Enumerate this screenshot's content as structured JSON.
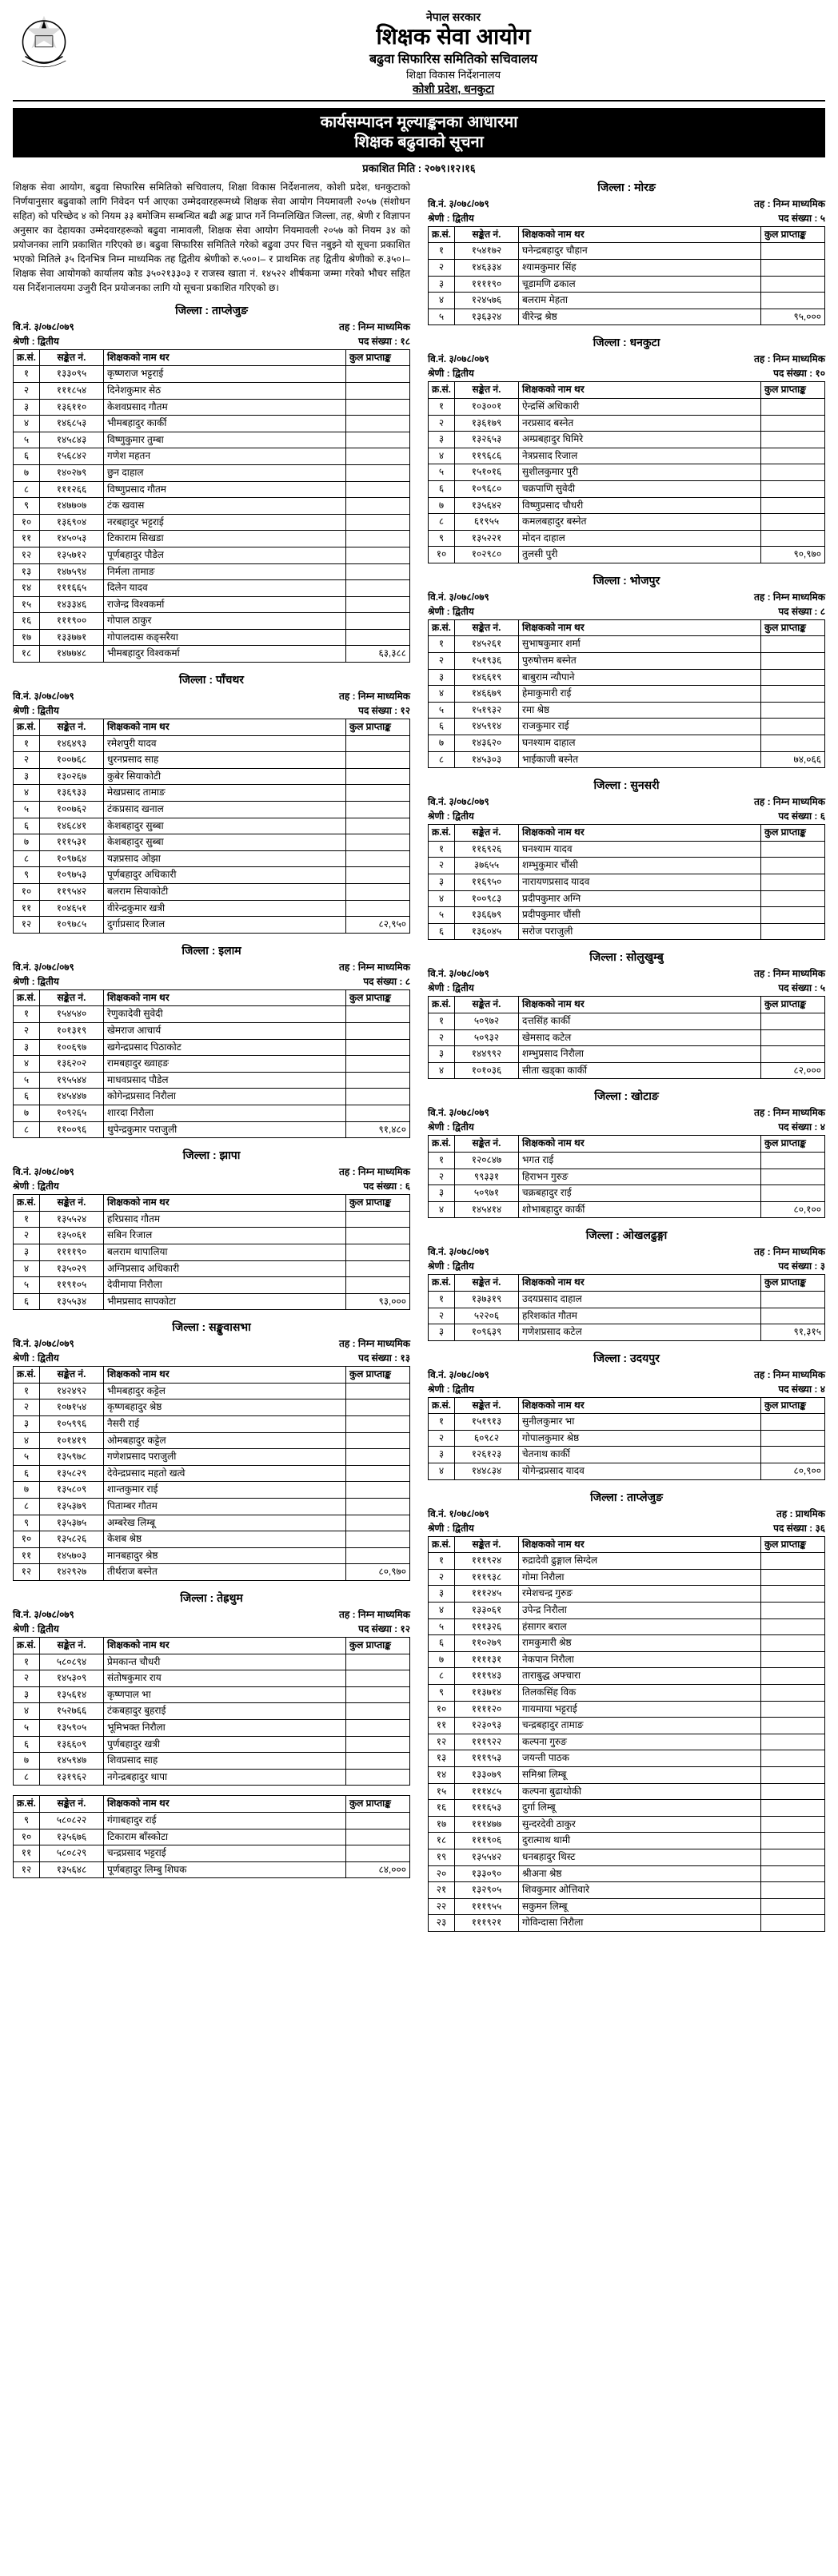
{
  "masthead": {
    "gov": "नेपाल सरकार",
    "org": "शिक्षक सेवा आयोग",
    "sub": "बढुवा सिफारिस समितिको सचिवालय",
    "dir": "शिक्षा विकास निर्देशनालय",
    "loc": "कोशी प्रदेश, धनकुटा"
  },
  "title": {
    "l1": "कार्यसम्पादन मूल्याङ्कनका आधारमा",
    "l2": "शिक्षक बढुवाको सूचना"
  },
  "pub_date": "प्रकाशित मिति : २०७९।१२।१६",
  "intro": "शिक्षक सेवा आयोग, बढुवा सिफारिस समितिको सचिवालय, शिक्षा विकास निर्देशनालय, कोशी प्रदेश, धनकुटाको निर्णयानुसार बढुवाको लागि निवेदन पर्न आएका उम्मेदवारहरूमध्ये शिक्षक सेवा आयोग नियमावली २०५७ (संशोधन सहित) को परिच्छेद ४ को नियम ३३ बमोजिम सम्बन्धित बढी अङ्क प्राप्त गर्ने निम्नलिखित जिल्ला, तह, श्रेणी र विज्ञापन अनुसार का देहायका उम्मेदवारहरूको बढुवा नामावली, शिक्षक सेवा आयोग नियमावली २०५७ को नियम ३४ को प्रयोजनका लागि प्रकाशित गरिएको छ। बढुवा सिफारिस समितिले गरेको बढुवा उपर चित्त नबुझ्ने यो सूचना प्रकाशित भएको मितिले ३५ दिनभित्र निम्न माध्यमिक तह द्वितीय श्रेणीको रु.५००।– र प्राथमिक तह द्वितीय श्रेणीको रु.३५०।– शिक्षक सेवा आयोगको कार्यालय कोड ३५०२१३३०३ र राजस्व खाता नं. १४५२२ शीर्षकमा जम्मा गरेको भौचर सहित यस निर्देशनालयमा उजुरी दिन प्रयोजनका लागि यो सूचना प्रकाशित गरिएको छ।",
  "headers": {
    "sn": "क्र.सं.",
    "code": "सङ्केत नं.",
    "name": "शिक्षकको नाम थर",
    "score": "कुल प्राप्ताङ्क"
  },
  "labels": {
    "adv": "वि.नं.",
    "grade": "श्रेणी :",
    "level": "तह :",
    "vac": "पद संख्या :"
  },
  "adv_no_1": "३/०७८/०७९",
  "adv_no_2": "१/०७८/०७९",
  "grade_2": "द्वितीय",
  "level_nimabi": "निम्न माध्यमिक",
  "level_pra": "प्राथमिक",
  "blocks": [
    {
      "district": "जिल्ला : ताप्लेजुङ",
      "vac": "१८",
      "rows": [
        [
          "१",
          "१३३०९५",
          "कृष्णराज भट्टराई",
          ""
        ],
        [
          "२",
          "१११८५४",
          "दिनेशकुमार सेठ",
          ""
        ],
        [
          "३",
          "१३६११०",
          "केशवप्रसाद गौतम",
          ""
        ],
        [
          "४",
          "१४६८५३",
          "भीमबहादुर कार्की",
          ""
        ],
        [
          "५",
          "१४५८४३",
          "विष्णुकुमार तुम्बा",
          ""
        ],
        [
          "६",
          "१५६८४२",
          "गणेश महतन",
          ""
        ],
        [
          "७",
          "१४०२७९",
          "छुन दाहाल",
          ""
        ],
        [
          "८",
          "१११२६६",
          "विष्णुप्रसाद गौतम",
          ""
        ],
        [
          "९",
          "१४७७०७",
          "टंक खवास",
          ""
        ],
        [
          "१०",
          "१३६९०४",
          "नरबहादुर भट्टराई",
          ""
        ],
        [
          "११",
          "१४५०५३",
          "टिकाराम सिखडा",
          ""
        ],
        [
          "१२",
          "१३५७१२",
          "पूर्णबहादुर पौडेल",
          ""
        ],
        [
          "१३",
          "१४७५९४",
          "निर्मला तामाङ",
          ""
        ],
        [
          "१४",
          "१११६६५",
          "दिलेन यादव",
          ""
        ],
        [
          "१५",
          "१४३३४६",
          "राजेन्द्र विश्वकर्मा",
          ""
        ],
        [
          "१६",
          "१११९००",
          "गोपाल ठाकुर",
          ""
        ],
        [
          "१७",
          "१३३७७१",
          "गोपालदास कङ्सरैया",
          ""
        ],
        [
          "१८",
          "१४७७४८",
          "भीमबहादुर विश्वकर्मा",
          "६३,३८८"
        ]
      ]
    },
    {
      "district": "जिल्ला : पाँचथर",
      "vac": "१२",
      "rows": [
        [
          "१",
          "१४६४९३",
          "रमेशपुरी यादव",
          ""
        ],
        [
          "२",
          "१००७६८",
          "धुरनप्रसाद साह",
          ""
        ],
        [
          "३",
          "१३०२६७",
          "कुबेर सियाकोटी",
          ""
        ],
        [
          "४",
          "१३६९३३",
          "मेखप्रसाद तामाङ",
          ""
        ],
        [
          "५",
          "१००७६२",
          "टंकप्रसाद खनाल",
          ""
        ],
        [
          "६",
          "१४६८४१",
          "केशबहादुर सुब्बा",
          ""
        ],
        [
          "७",
          "१११५३१",
          "केशबहादुर सुब्बा",
          ""
        ],
        [
          "८",
          "१०९७६४",
          "यज्ञप्रसाद ओझा",
          ""
        ],
        [
          "९",
          "१०९७५३",
          "पूर्णबहादुर अधिकारी",
          ""
        ],
        [
          "१०",
          "११९५४२",
          "बलराम सियाकोटी",
          ""
        ],
        [
          "११",
          "१०४६५१",
          "वीरेन्द्रकुमार खत्री",
          ""
        ],
        [
          "१२",
          "१०९७८५",
          "दुर्गाप्रसाद रिजाल",
          "८२,९५०"
        ]
      ]
    },
    {
      "district": "जिल्ला : इलाम",
      "vac": "८",
      "rows": [
        [
          "१",
          "१५४५४०",
          "रेणुकादेवी सुवेदी",
          ""
        ],
        [
          "२",
          "१०१३१९",
          "खेमराज आचार्य",
          ""
        ],
        [
          "३",
          "१००६९७",
          "खगेन्द्रप्रसाद पिठाकोट",
          ""
        ],
        [
          "४",
          "१३६२०२",
          "रामबहादुर ख्वाहङ",
          ""
        ],
        [
          "५",
          "१९५५४४",
          "माधवप्रसाद पौडेल",
          ""
        ],
        [
          "६",
          "१४५४४७",
          "कोगेन्द्रप्रसाद निरौला",
          ""
        ],
        [
          "७",
          "१०९२६५",
          "शारदा निरौला",
          ""
        ],
        [
          "८",
          "११००९६",
          "थुपेन्द्रकुमार पराजुली",
          "९१,४८०"
        ]
      ]
    },
    {
      "district": "जिल्ला : झापा",
      "vac": "६",
      "rows": [
        [
          "१",
          "१३५५२४",
          "हरिप्रसाद गौतम",
          ""
        ],
        [
          "२",
          "१३५०६१",
          "सबिन रिजाल",
          ""
        ],
        [
          "३",
          "११११९०",
          "बलराम थापालिया",
          ""
        ],
        [
          "४",
          "१३५०२९",
          "अग्निप्रसाद अधिकारी",
          ""
        ],
        [
          "५",
          "११९१०५",
          "देवीमाया निरौला",
          ""
        ],
        [
          "६",
          "१३५५३४",
          "भीमप्रसाद सापकोटा",
          "९३,०००"
        ]
      ]
    },
    {
      "district": "जिल्ला : सङ्खुवासभा",
      "vac": "१३",
      "rows": [
        [
          "१",
          "१४२४९२",
          "भीमबहादुर कट्टेल",
          ""
        ],
        [
          "२",
          "१०७१५४",
          "कृष्णबहादुर श्रेष्ठ",
          ""
        ],
        [
          "३",
          "१०५९९६",
          "नैसरी राई",
          ""
        ],
        [
          "४",
          "१०१४१९",
          "ओमबहादुर कट्टेल",
          ""
        ],
        [
          "५",
          "१३५९७८",
          "गणेशप्रसाद पराजुली",
          ""
        ],
        [
          "६",
          "१३५८२९",
          "देवेन्द्रप्रसाद महतो खत्वे",
          ""
        ],
        [
          "७",
          "१३५८०९",
          "शान्तकुमार राई",
          ""
        ],
        [
          "८",
          "१३५३७९",
          "पिताम्बर गौतम",
          ""
        ],
        [
          "९",
          "१३५३७५",
          "अम्बरेख लिम्बू",
          ""
        ],
        [
          "१०",
          "१३५८२६",
          "केशब श्रेष्ठ",
          ""
        ],
        [
          "११",
          "१४५७०३",
          "मानबहादुर श्रेष्ठ",
          ""
        ],
        [
          "१२",
          "१४२९२७",
          "तीर्थराज बस्नेत",
          "८०,९७०"
        ]
      ]
    },
    {
      "district": "जिल्ला : तेह्रथुम",
      "vac": "१२",
      "rows": [
        [
          "१",
          "५८०८९४",
          "प्रेमकान्त चौधरी",
          ""
        ],
        [
          "२",
          "१४५३०९",
          "संतोषकुमार राय",
          ""
        ],
        [
          "३",
          "१३५६१४",
          "कृष्णपाल भा",
          ""
        ],
        [
          "४",
          "१५२७६६",
          "टंकबहादुर बुहराई",
          ""
        ],
        [
          "५",
          "१३५९०५",
          "भूमिभक्त निरौला",
          ""
        ],
        [
          "६",
          "१३६६०९",
          "पुर्णबहादुर खत्री",
          ""
        ],
        [
          "७",
          "१४५९४७",
          "शिवप्रसाद साह",
          ""
        ],
        [
          "८",
          "१३१९६२",
          "नगेन्द्रबहादुर थापा",
          ""
        ]
      ]
    },
    {
      "district": "",
      "vac": "",
      "continuation": true,
      "rows": [
        [
          "९",
          "५८०८२२",
          "गंगाबहादुर राई",
          ""
        ],
        [
          "१०",
          "१३५६७६",
          "टिकाराम बाँस्कोटा",
          ""
        ],
        [
          "११",
          "५८०८२९",
          "चन्द्रप्रसाद भट्टराई",
          ""
        ],
        [
          "१२",
          "१३५६४८",
          "पूर्णबहादुर लिम्बु शिघक",
          "८४,०००"
        ]
      ]
    },
    {
      "district": "जिल्ला : मोरङ",
      "vac": "५",
      "rows": [
        [
          "१",
          "१५४१७२",
          "घनेन्द्रबहादुर चौहान",
          ""
        ],
        [
          "२",
          "१४६३३४",
          "श्यामकुमार सिंह",
          ""
        ],
        [
          "३",
          "११११९०",
          "चूडामणि ढकाल",
          ""
        ],
        [
          "४",
          "१२४५७६",
          "बलराम मेहता",
          ""
        ],
        [
          "५",
          "१३६३२४",
          "वीरेन्द्र श्रेष्ठ",
          "९५,०००"
        ]
      ]
    },
    {
      "district": "जिल्ला : धनकुटा",
      "vac": "१०",
      "rows": [
        [
          "१",
          "१०३००१",
          "ऐन्द्रसिं अधिकारी",
          ""
        ],
        [
          "२",
          "१३६१७९",
          "नरप्रसाद बस्नेत",
          ""
        ],
        [
          "३",
          "१३२६५३",
          "अम्प्रबहादुर घिमिरे",
          ""
        ],
        [
          "४",
          "११९६८६",
          "नेत्रप्रसाद रिजाल",
          ""
        ],
        [
          "५",
          "१५१०१६",
          "सुशीलकुमार पुरी",
          ""
        ],
        [
          "६",
          "१०९६८०",
          "चक्रपाणि सुवेदी",
          ""
        ],
        [
          "७",
          "१३५६४२",
          "विष्णुप्रसाद चौधरी",
          ""
        ],
        [
          "८",
          "६१९५५",
          "कमलबहादुर बस्नेत",
          ""
        ],
        [
          "९",
          "१३५२२१",
          "मोदन दाहाल",
          ""
        ],
        [
          "१०",
          "१०२९८०",
          "तुलसी पुरी",
          "९०,९७०"
        ]
      ]
    },
    {
      "district": "जिल्ला : भोजपुर",
      "vac": "८",
      "rows": [
        [
          "१",
          "१४५२६१",
          "सुभाषकुमार शर्मा",
          ""
        ],
        [
          "२",
          "१५१९३६",
          "पुरुषोत्तम बस्नेत",
          ""
        ],
        [
          "३",
          "१४६६१९",
          "बाबुराम न्यौपाने",
          ""
        ],
        [
          "४",
          "१४६६७९",
          "हेमाकुमारी राई",
          ""
        ],
        [
          "५",
          "१५१९३२",
          "रमा श्रेष्ठ",
          ""
        ],
        [
          "६",
          "१४५९१४",
          "राजकुमार राई",
          ""
        ],
        [
          "७",
          "१४३६२०",
          "घनश्याम दाहाल",
          ""
        ],
        [
          "८",
          "१४५३०३",
          "भाईकाजी बस्नेत",
          "७४,०६६"
        ]
      ]
    },
    {
      "district": "जिल्ला : सुनसरी",
      "vac": "६",
      "rows": [
        [
          "१",
          "११६९२६",
          "घनश्याम यादव",
          ""
        ],
        [
          "२",
          "३७६५५",
          "शम्भुकुमार चौंसी",
          ""
        ],
        [
          "३",
          "११६९५०",
          "नारायणप्रसाद यादव",
          ""
        ],
        [
          "४",
          "१००९८३",
          "प्रदीपकुमार अग्नि",
          ""
        ],
        [
          "५",
          "१३६६७९",
          "प्रदीपकुमार चौंसी",
          ""
        ],
        [
          "६",
          "१३६०४५",
          "सरोज पराजुली",
          ""
        ]
      ]
    },
    {
      "district": "जिल्ला : सोलुखुम्बु",
      "vac": "५",
      "rows": [
        [
          "१",
          "५०९७२",
          "दत्तसिंह कार्की",
          ""
        ],
        [
          "२",
          "५०९३२",
          "खेमसाद कटेल",
          ""
        ],
        [
          "३",
          "१४४९९२",
          "शम्भुप्रसाद निरौला",
          ""
        ],
        [
          "४",
          "१०१०३६",
          "सीता खड्का कार्की",
          "८२,०००"
        ]
      ]
    },
    {
      "district": "जिल्ला : खोटाङ",
      "vac": "४",
      "rows": [
        [
          "१",
          "१२०८४७",
          "भगत राई",
          ""
        ],
        [
          "२",
          "९९३३१",
          "हिराभन गुरुङ",
          ""
        ],
        [
          "३",
          "५०९७१",
          "चक्रबहादुर राई",
          ""
        ],
        [
          "४",
          "१४५४१४",
          "शोभाबहादुर कार्की",
          "८०,१००"
        ]
      ]
    },
    {
      "district": "जिल्ला : ओखलढुङ्गा",
      "vac": "३",
      "rows": [
        [
          "१",
          "१३७३१९",
          "उदयप्रसाद दाहाल",
          ""
        ],
        [
          "२",
          "५२२०६",
          "हरिशकांत गौतम",
          ""
        ],
        [
          "३",
          "१०९६३९",
          "गणेशप्रसाद कटेल",
          "९१,३१५"
        ]
      ]
    },
    {
      "district": "जिल्ला : उदयपुर",
      "vac": "४",
      "rows": [
        [
          "१",
          "१५१९१३",
          "सुनीलकुमार भा",
          ""
        ],
        [
          "२",
          "६०९८२",
          "गोपालकुमार श्रेष्ठ",
          ""
        ],
        [
          "३",
          "१२६१२३",
          "चेतनाथ कार्की",
          ""
        ],
        [
          "४",
          "१४४८३४",
          "योगेन्द्रप्रसाद यादव",
          "८०,९००"
        ]
      ]
    },
    {
      "district": "जिल्ला : ताप्लेजुङ",
      "vac": "३६",
      "adv_override": "adv_no_2",
      "level_override": "level_pra",
      "rows": [
        [
          "१",
          "१११९२४",
          "रुद्रादेवी ढुङ्गाल सिग्देल",
          ""
        ],
        [
          "२",
          "१११९३८",
          "गोमा निरौला",
          ""
        ],
        [
          "३",
          "१११२४५",
          "रमेशचन्द्र गुरुङ",
          ""
        ],
        [
          "४",
          "१३३०६१",
          "उपेन्द्र निरौला",
          ""
        ],
        [
          "५",
          "१११३२६",
          "हंसागर बराल",
          ""
        ],
        [
          "६",
          "११०२७९",
          "रामकुमारी श्रेष्ठ",
          ""
        ],
        [
          "७",
          "११११३१",
          "नेकपान निरौला",
          ""
        ],
        [
          "८",
          "१११९४३",
          "ताराबुद्ध अफ्चारा",
          ""
        ],
        [
          "९",
          "११३७१४",
          "तिलकसिंह विक",
          ""
        ],
        [
          "१०",
          "११११२०",
          "गायमाया भट्टराई",
          ""
        ],
        [
          "११",
          "१२३०९३",
          "चन्द्रबहादुर तामाङ",
          ""
        ],
        [
          "१२",
          "१११९२२",
          "कल्पना गुरुङ",
          ""
        ],
        [
          "१३",
          "१११९५३",
          "जयन्ती पाठक",
          ""
        ],
        [
          "१४",
          "१३३०७९",
          "समिश्रा लिम्बू",
          ""
        ],
        [
          "१५",
          "१११४८५",
          "कल्पना बुढाथोकी",
          ""
        ],
        [
          "१६",
          "१११६५३",
          "दुर्गा लिम्बू",
          ""
        ],
        [
          "१७",
          "१११४७७",
          "सुन्दरदेवी ठाकुर",
          ""
        ],
        [
          "१८",
          "१११९०६",
          "दुरात्माथ थामी",
          ""
        ],
        [
          "१९",
          "१३५५४२",
          "धनबहादुर थिस्ट",
          ""
        ],
        [
          "२०",
          "१३३०९०",
          "श्रीअना श्रेष्ठ",
          ""
        ],
        [
          "२१",
          "१३२९०५",
          "शिवकुमार ओत्तिवारे",
          ""
        ],
        [
          "२२",
          "१११९५५",
          "सकुमन लिम्बू",
          ""
        ],
        [
          "२३",
          "१११९२१",
          "गोविन्दासा निरौला",
          ""
        ]
      ]
    }
  ]
}
